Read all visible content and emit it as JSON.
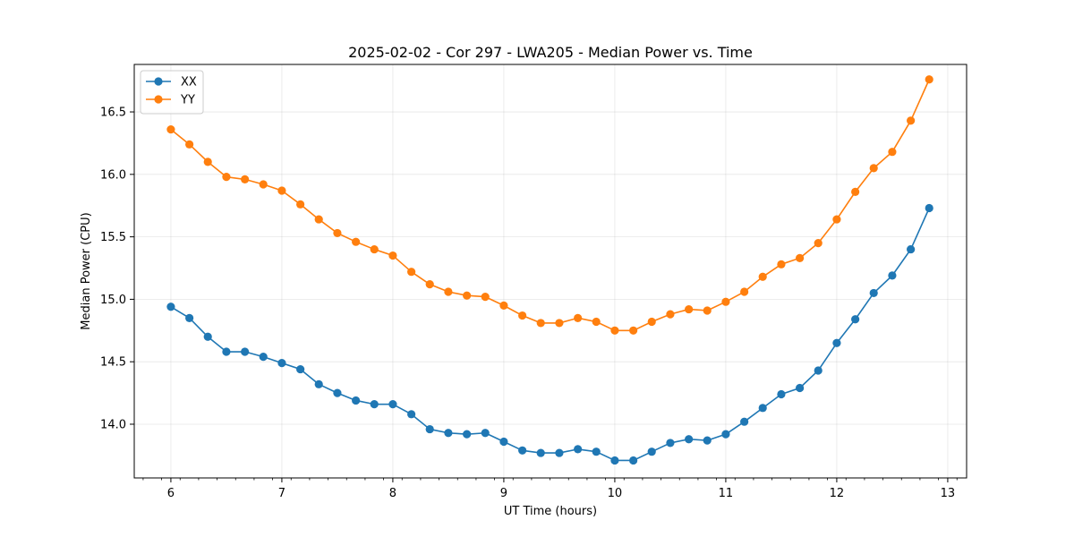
{
  "chart_data": {
    "type": "line",
    "title": "2025-02-02 - Cor 297 - LWA205 - Median Power vs. Time",
    "xlabel": "UT Time (hours)",
    "ylabel": "Median Power (CPU)",
    "xlim": [
      5.67,
      13.17
    ],
    "ylim": [
      13.57,
      16.88
    ],
    "xticks": [
      6,
      7,
      8,
      9,
      10,
      11,
      12,
      13
    ],
    "yticks": [
      14.0,
      14.5,
      15.0,
      15.5,
      16.0,
      16.5
    ],
    "xtick_labels": [
      "6",
      "7",
      "8",
      "9",
      "10",
      "11",
      "12",
      "13"
    ],
    "ytick_labels": [
      "14.0",
      "14.5",
      "15.0",
      "15.5",
      "16.0",
      "16.5"
    ],
    "grid": true,
    "legend_position": "top-left",
    "x": [
      6.0,
      6.167,
      6.333,
      6.5,
      6.667,
      6.833,
      7.0,
      7.167,
      7.333,
      7.5,
      7.667,
      7.833,
      8.0,
      8.167,
      8.333,
      8.5,
      8.667,
      8.833,
      9.0,
      9.167,
      9.333,
      9.5,
      9.667,
      9.833,
      10.0,
      10.167,
      10.333,
      10.5,
      10.667,
      10.833,
      11.0,
      11.167,
      11.333,
      11.5,
      11.667,
      11.833,
      12.0,
      12.167,
      12.333,
      12.5,
      12.667,
      12.833
    ],
    "series": [
      {
        "name": "XX",
        "color": "#1f77b4",
        "values": [
          14.94,
          14.85,
          14.7,
          14.58,
          14.58,
          14.54,
          14.49,
          14.44,
          14.32,
          14.25,
          14.19,
          14.16,
          14.16,
          14.08,
          13.96,
          13.93,
          13.92,
          13.93,
          13.86,
          13.79,
          13.77,
          13.77,
          13.8,
          13.78,
          13.71,
          13.71,
          13.78,
          13.85,
          13.88,
          13.87,
          13.92,
          14.02,
          14.13,
          14.24,
          14.29,
          14.43,
          14.65,
          14.84,
          15.05,
          15.19,
          15.4,
          15.73
        ]
      },
      {
        "name": "YY",
        "color": "#ff7f0e",
        "values": [
          16.36,
          16.24,
          16.1,
          15.98,
          15.96,
          15.92,
          15.87,
          15.76,
          15.64,
          15.53,
          15.46,
          15.4,
          15.35,
          15.22,
          15.12,
          15.06,
          15.03,
          15.02,
          14.95,
          14.87,
          14.81,
          14.81,
          14.85,
          14.82,
          14.75,
          14.75,
          14.82,
          14.88,
          14.92,
          14.91,
          14.98,
          15.06,
          15.18,
          15.28,
          15.33,
          15.45,
          15.64,
          15.86,
          16.05,
          16.18,
          16.43,
          16.76
        ]
      }
    ]
  }
}
